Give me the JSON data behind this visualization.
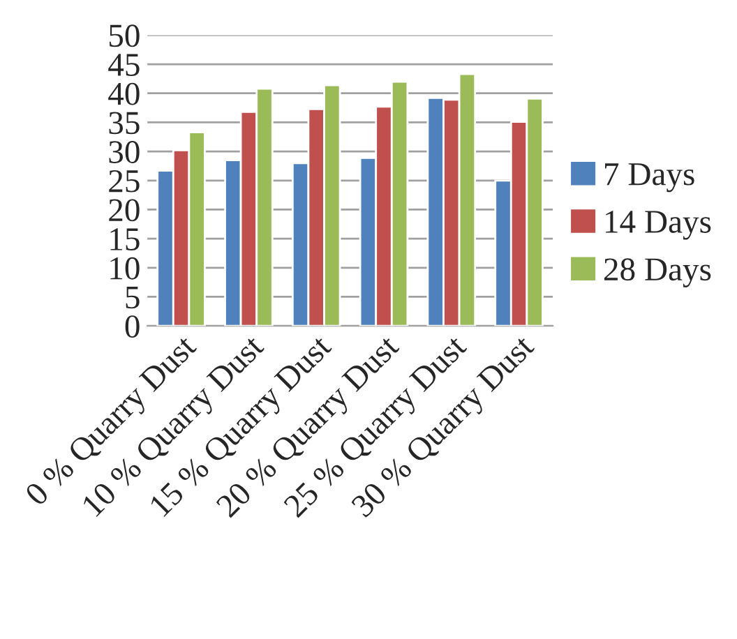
{
  "chart_data": {
    "type": "bar",
    "categories": [
      "0 % Quarry Dust",
      "10 % Quarry Dust",
      "15 % Quarry Dust",
      "20 % Quarry Dust",
      "25 % Quarry Dust",
      "30 % Quarry Dust"
    ],
    "series": [
      {
        "name": "7 Days",
        "color": "#4f81bd",
        "values": [
          26.7,
          28.5,
          28.0,
          28.9,
          39.2,
          25.0
        ]
      },
      {
        "name": "14 Days",
        "color": "#c0504d",
        "values": [
          30.2,
          36.8,
          37.3,
          37.7,
          38.9,
          35.1
        ]
      },
      {
        "name": "28 Days",
        "color": "#9bbb59",
        "values": [
          33.3,
          40.8,
          41.4,
          42.0,
          43.3,
          39.1
        ]
      }
    ],
    "ylim": [
      0,
      50
    ],
    "yticks": [
      0,
      5,
      10,
      15,
      20,
      25,
      30,
      35,
      40,
      45,
      50
    ],
    "grid": "y",
    "legend": "right"
  }
}
